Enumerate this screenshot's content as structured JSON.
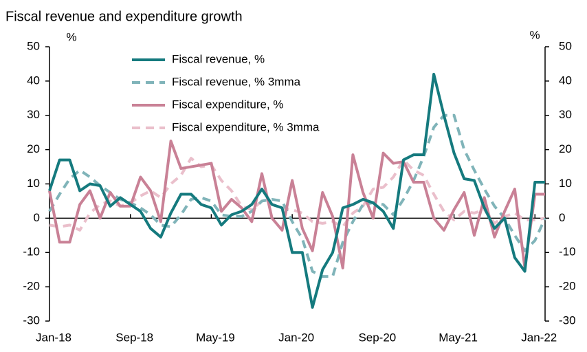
{
  "chart_data": {
    "type": "line",
    "title": "Fiscal revenue and expenditure growth",
    "y_label": "%",
    "y2_label": "%",
    "categories": [
      "Jan-18",
      null,
      null,
      null,
      null,
      null,
      null,
      null,
      "Sep-18",
      null,
      null,
      null,
      null,
      null,
      null,
      null,
      "May-19",
      null,
      null,
      null,
      null,
      null,
      null,
      null,
      "Jan-20",
      null,
      null,
      null,
      null,
      null,
      null,
      null,
      "Sep-20",
      null,
      null,
      null,
      null,
      null,
      null,
      null,
      "May-21",
      null,
      null,
      null,
      null,
      null,
      null,
      null,
      "Jan-22",
      null
    ],
    "series": [
      {
        "name": "Fiscal revenue, %",
        "color": "#157a7e",
        "dash": false,
        "values": [
          8,
          17,
          17,
          8,
          10,
          9.5,
          3.5,
          6,
          4,
          2,
          -3,
          -5.5,
          1.5,
          7,
          7,
          4,
          3,
          -2,
          1,
          2,
          4,
          8.5,
          4,
          3,
          -10,
          -10,
          -26,
          -15,
          -10,
          3,
          4,
          5.5,
          4.5,
          2,
          -3,
          17,
          18.5,
          18.5,
          42,
          30,
          19,
          11.5,
          11,
          3,
          -3,
          0,
          -11.5,
          -15.5,
          10.5,
          10.5
        ]
      },
      {
        "name": "Fiscal revenue, % 3mma",
        "color": "#80b4b9",
        "dash": true,
        "values": [
          2,
          7,
          11.5,
          14,
          12,
          9.5,
          7.5,
          5.5,
          4.5,
          3,
          1,
          -2,
          -2.5,
          1,
          5.5,
          6,
          5,
          1,
          0.5,
          0.5,
          2,
          5,
          5.5,
          5,
          -1,
          -6,
          -15.5,
          -17,
          -17,
          -7,
          -1,
          4,
          4.5,
          4,
          1,
          5.5,
          11,
          18,
          26.5,
          30,
          30,
          20,
          14,
          8.5,
          3.5,
          0,
          -5,
          -9.5,
          -6.5,
          0
        ]
      },
      {
        "name": "Fiscal expenditure, %",
        "color": "#c98196",
        "dash": false,
        "values": [
          8,
          -7,
          -7,
          4,
          8,
          0,
          7.5,
          3.5,
          3.5,
          12,
          8,
          -1,
          22.5,
          14.5,
          15,
          15.5,
          16,
          2,
          5.5,
          3,
          -1,
          13,
          0,
          -3.5,
          11,
          -3,
          -9.5,
          7.5,
          0.5,
          -14.5,
          18.5,
          7.5,
          0,
          19,
          16,
          16.5,
          10.5,
          10.5,
          0,
          -3.5,
          2.5,
          7.5,
          -5,
          6,
          -5.5,
          2,
          8.5,
          -14.5,
          7,
          7
        ]
      },
      {
        "name": "Fiscal expenditure, % 3mma",
        "color": "#eabfcb",
        "dash": true,
        "values": [
          -2,
          -2.5,
          -2,
          -3.5,
          1.5,
          4,
          5,
          3.5,
          4.5,
          6.5,
          8,
          6,
          10,
          12.5,
          17.5,
          15,
          15.5,
          11,
          8,
          3.5,
          2.5,
          5,
          4,
          3,
          2.5,
          1.5,
          -1,
          -1.5,
          -1,
          -2.5,
          1.5,
          3.5,
          8.5,
          9,
          12,
          17,
          14,
          12.5,
          7,
          2,
          -0.5,
          2,
          1.5,
          2.5,
          -1.5,
          0.5,
          1.5,
          -0.5,
          -0.5,
          0
        ]
      }
    ],
    "ylim": [
      -30,
      50
    ],
    "yticks": [
      -30,
      -20,
      -10,
      0,
      10,
      20,
      30,
      40,
      50
    ],
    "y2lim": [
      -30,
      50
    ],
    "y2ticks": [
      -30,
      -20,
      -10,
      0,
      10,
      20,
      30,
      40,
      50
    ],
    "legend": "top-left"
  }
}
